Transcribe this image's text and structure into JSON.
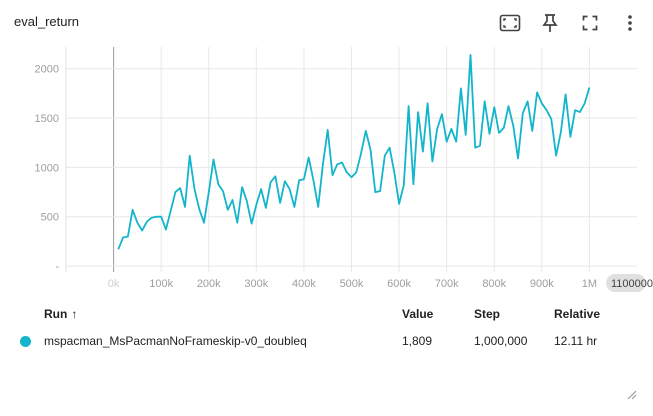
{
  "card": {
    "title": "eval_return"
  },
  "toolbar": {
    "icons": [
      "fit-domain-icon",
      "pin-icon",
      "fullscreen-icon",
      "more-vert-icon"
    ]
  },
  "chart_data": {
    "type": "line",
    "title": "eval_return",
    "xlabel": "",
    "ylabel": "",
    "xlim": [
      -100000,
      1100000
    ],
    "ylim": [
      -60,
      2220
    ],
    "x_ticks": [
      0,
      100000,
      200000,
      300000,
      400000,
      500000,
      600000,
      700000,
      800000,
      900000,
      1000000
    ],
    "x_tick_labels": [
      "0k",
      "100k",
      "200k",
      "300k",
      "400k",
      "500k",
      "600k",
      "700k",
      "800k",
      "900k",
      "1M"
    ],
    "x_max_label": "1100000",
    "y_ticks": [
      0,
      500,
      1000,
      1500,
      2000
    ],
    "y_tick_labels": [
      "-",
      "500",
      "1000",
      "1500",
      "2000"
    ],
    "grid": true,
    "series": [
      {
        "name": "mspacman_MsPacmanNoFrameskip-v0_doubleq",
        "color": "#12b5cb",
        "x": [
          10000,
          20000,
          30000,
          40000,
          50000,
          60000,
          70000,
          80000,
          90000,
          100000,
          110000,
          120000,
          130000,
          140000,
          150000,
          160000,
          170000,
          180000,
          190000,
          200000,
          210000,
          220000,
          230000,
          240000,
          250000,
          260000,
          270000,
          280000,
          290000,
          300000,
          310000,
          320000,
          330000,
          340000,
          350000,
          360000,
          370000,
          380000,
          390000,
          400000,
          410000,
          420000,
          430000,
          440000,
          450000,
          460000,
          470000,
          480000,
          490000,
          500000,
          510000,
          520000,
          530000,
          540000,
          550000,
          560000,
          570000,
          580000,
          590000,
          600000,
          610000,
          620000,
          630000,
          640000,
          650000,
          660000,
          670000,
          680000,
          690000,
          700000,
          710000,
          720000,
          730000,
          740000,
          750000,
          760000,
          770000,
          780000,
          790000,
          800000,
          810000,
          820000,
          830000,
          840000,
          850000,
          860000,
          870000,
          880000,
          890000,
          900000,
          910000,
          920000,
          930000,
          940000,
          950000,
          960000,
          970000,
          980000,
          990000,
          1000000
        ],
        "values": [
          170,
          290,
          300,
          570,
          440,
          360,
          450,
          490,
          500,
          500,
          370,
          560,
          750,
          790,
          600,
          1120,
          780,
          580,
          440,
          750,
          1080,
          830,
          760,
          570,
          670,
          440,
          800,
          660,
          430,
          620,
          780,
          590,
          850,
          910,
          640,
          860,
          780,
          600,
          870,
          880,
          1100,
          870,
          600,
          1030,
          1380,
          920,
          1030,
          1050,
          950,
          900,
          950,
          1140,
          1370,
          1180,
          750,
          760,
          1120,
          1200,
          950,
          630,
          820,
          1620,
          830,
          1560,
          1160,
          1650,
          1060,
          1390,
          1540,
          1260,
          1390,
          1260,
          1800,
          1330,
          2140,
          1200,
          1220,
          1670,
          1340,
          1610,
          1350,
          1400,
          1620,
          1420,
          1090,
          1550,
          1670,
          1370,
          1760,
          1650,
          1580,
          1490,
          1120,
          1360,
          1740,
          1310,
          1580,
          1560,
          1650,
          1810
        ]
      }
    ]
  },
  "table": {
    "headers": {
      "run": "Run",
      "sort_arrow": "↑",
      "value": "Value",
      "step": "Step",
      "relative": "Relative"
    },
    "rows": [
      {
        "run": "mspacman_MsPacmanNoFrameskip-v0_doubleq",
        "value": "1,809",
        "step": "1,000,000",
        "relative": "12.11 hr",
        "color": "#12b5cb"
      }
    ]
  }
}
